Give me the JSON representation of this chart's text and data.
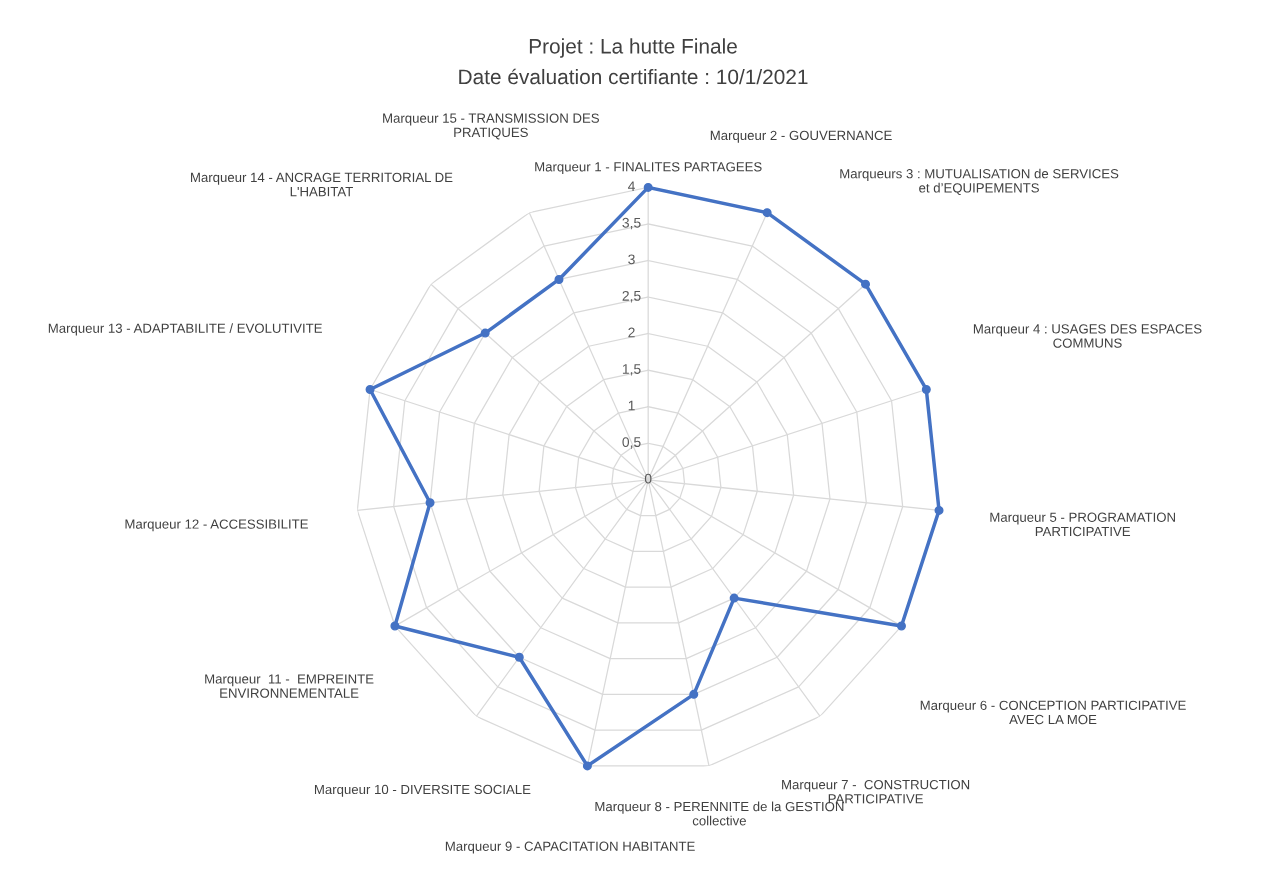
{
  "chart_data": {
    "type": "radar",
    "title": "Projet : La hutte Finale",
    "subtitle": "Date évaluation certifiante : 10/1/2021",
    "categories": [
      "Marqueur 1 - FINALITES PARTAGEES",
      "Marqueur 2 - GOUVERNANCE",
      "Marqueurs 3 : MUTUALISATION de SERVICES\net d’EQUIPEMENTS",
      "Marqueur 4 : USAGES DES ESPACES\nCOMMUNS",
      "Marqueur 5 - PROGRAMATION\nPARTICIPATIVE",
      "Marqueur 6 - CONCEPTION PARTICIPATIVE\nAVEC LA MOE",
      "Marqueur 7 -  CONSTRUCTION\nPARTICIPATIVE",
      "Marqueur 8 - PERENNITE de la GESTION\ncollective",
      "Marqueur 9 - CAPACITATION HABITANTE",
      "Marqueur 10 - DIVERSITE SOCIALE",
      "Marqueur  11 -  EMPREINTE\nENVIRONNEMENTALE",
      "Marqueur 12 - ACCESSIBILITE",
      "Marqueur 13 - ADAPTABILITE / EVOLUTIVITE",
      "Marqueur 14 - ANCRAGE TERRITORIAL DE\nL'HABITAT",
      "Marqueur 15 - TRANSMISSION DES\nPRATIQUES"
    ],
    "series": [
      {
        "color": "#4472c4",
        "values": [
          4,
          4,
          4,
          4,
          4,
          4,
          2,
          3,
          4,
          3,
          4,
          3,
          4,
          3,
          3
        ]
      }
    ],
    "ylim": [
      0,
      4
    ],
    "yticks": [
      0,
      {
        "value": 0.5,
        "label": "0,5"
      },
      1,
      {
        "value": 1.5,
        "label": "1,5"
      },
      2,
      {
        "value": 2.5,
        "label": "2,5"
      },
      3,
      {
        "value": 3.5,
        "label": "3,5"
      },
      4
    ],
    "grid": true,
    "marker": "circle",
    "line_style": "solid"
  }
}
